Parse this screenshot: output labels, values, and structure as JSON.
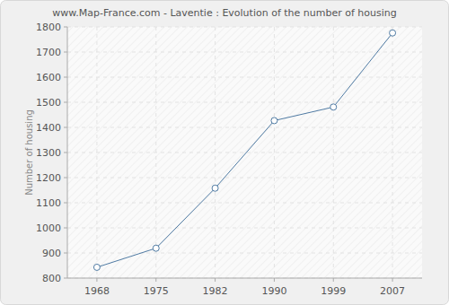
{
  "chart_data": {
    "type": "line",
    "title": "www.Map-France.com - Laventie : Evolution of the number of housing",
    "y_label": "Number of housing",
    "categories": [
      "1968",
      "1975",
      "1982",
      "1990",
      "1999",
      "2007"
    ],
    "values": [
      843,
      919,
      1158,
      1427,
      1481,
      1776
    ],
    "color": "#4f7aa3",
    "marker": "circle",
    "ylim": [
      800,
      1800
    ],
    "yticks": [
      800,
      900,
      1000,
      1100,
      1200,
      1300,
      1400,
      1500,
      1600,
      1700,
      1800
    ],
    "grid": true
  }
}
